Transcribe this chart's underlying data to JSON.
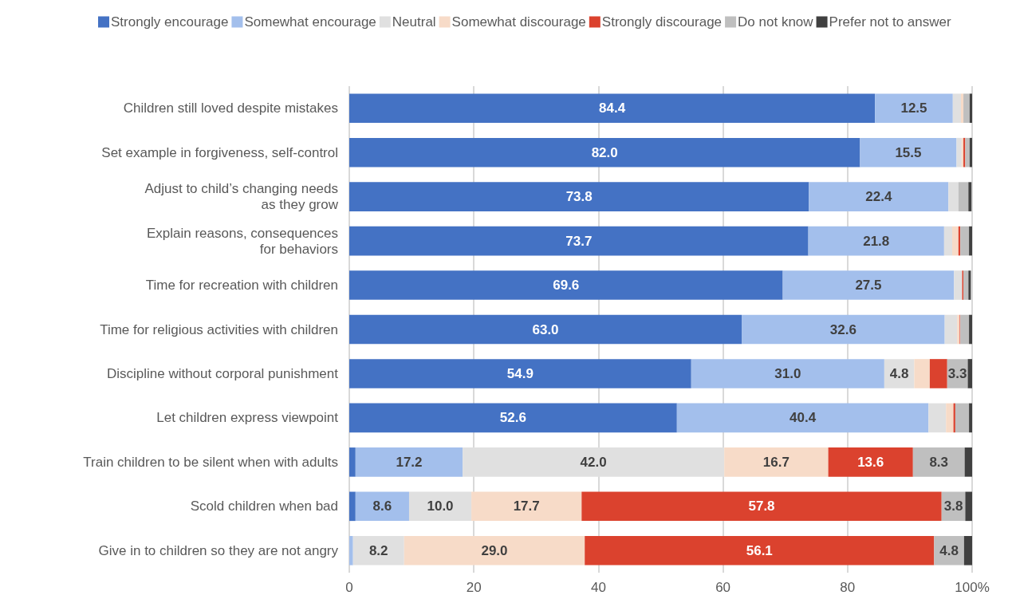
{
  "chart_data": {
    "type": "bar",
    "orientation": "horizontal",
    "stacked": true,
    "categories": [
      "Children still loved despite mistakes",
      "Set example in forgiveness, self-control",
      "Adjust to child’s changing needs\nas they grow",
      "Explain reasons, consequences\nfor behaviors",
      "Time for recreation with children",
      "Time for religious activities with children",
      "Discipline without corporal punishment",
      "Let children express viewpoint",
      "Train children to be silent when with adults",
      "Scold children when bad",
      "Give in to children so they are not angry"
    ],
    "series": [
      {
        "name": "Strongly encourage",
        "color": "#4472c4",
        "values": [
          84.4,
          82.0,
          73.8,
          73.7,
          69.6,
          63.0,
          54.9,
          52.6,
          1.0,
          1.0,
          0
        ],
        "value_labels": [
          "84.4",
          "82.0",
          "73.8",
          "73.7",
          "69.6",
          "63.0",
          "54.9",
          "52.6",
          null,
          null,
          null
        ]
      },
      {
        "name": "Somewhat encourage",
        "color": "#a3bfec",
        "values": [
          12.5,
          15.5,
          22.4,
          21.8,
          27.5,
          32.6,
          31.0,
          40.4,
          17.2,
          8.6,
          0.6
        ],
        "value_labels": [
          "12.5",
          "15.5",
          "22.4",
          "21.8",
          "27.5",
          "32.6",
          "31.0",
          "40.4",
          "17.2",
          "8.6",
          null
        ]
      },
      {
        "name": "Neutral",
        "color": "#e0e0e0",
        "values": [
          1.3,
          0.8,
          1.6,
          1.3,
          1.3,
          2.0,
          4.8,
          2.8,
          42.0,
          10.0,
          8.2
        ],
        "value_labels": [
          null,
          null,
          null,
          null,
          null,
          null,
          "4.8",
          null,
          "42.0",
          "10.0",
          "8.2"
        ]
      },
      {
        "name": "Somewhat discourage",
        "color": "#f7dbc8",
        "values": [
          0.4,
          0.3,
          null,
          1.0,
          null,
          0.4,
          2.5,
          1.2,
          16.7,
          17.7,
          29.0
        ],
        "value_labels": [
          null,
          null,
          null,
          null,
          null,
          null,
          null,
          null,
          "16.7",
          "17.7",
          "29.0"
        ]
      },
      {
        "name": "Strongly discourage",
        "color": "#db422e",
        "values": [
          0,
          0.3,
          0,
          0.3,
          0.2,
          0.1,
          2.8,
          0.3,
          13.6,
          57.8,
          56.1
        ],
        "value_labels": [
          null,
          null,
          null,
          null,
          null,
          null,
          null,
          null,
          "13.6",
          "57.8",
          "56.1"
        ]
      },
      {
        "name": "Do not know",
        "color": "#bfbfbf",
        "values": [
          1.0,
          0.7,
          1.6,
          1.4,
          0.8,
          1.4,
          3.3,
          2.2,
          8.3,
          3.8,
          4.8
        ],
        "value_labels": [
          null,
          null,
          null,
          null,
          null,
          null,
          "3.3",
          null,
          "8.3",
          "3.8",
          "4.8"
        ]
      },
      {
        "name": "Prefer not to answer",
        "color": "#404040",
        "values": [
          0.4,
          0.4,
          0.5,
          0.5,
          0.4,
          0.5,
          0.7,
          0.5,
          1.2,
          1.1,
          1.3
        ]
      }
    ],
    "xlim": [
      0,
      100
    ],
    "xticks": [
      0,
      20,
      40,
      60,
      80,
      {
        "value": 100,
        "label": "100%"
      }
    ],
    "grid": "x",
    "legend": "top"
  }
}
